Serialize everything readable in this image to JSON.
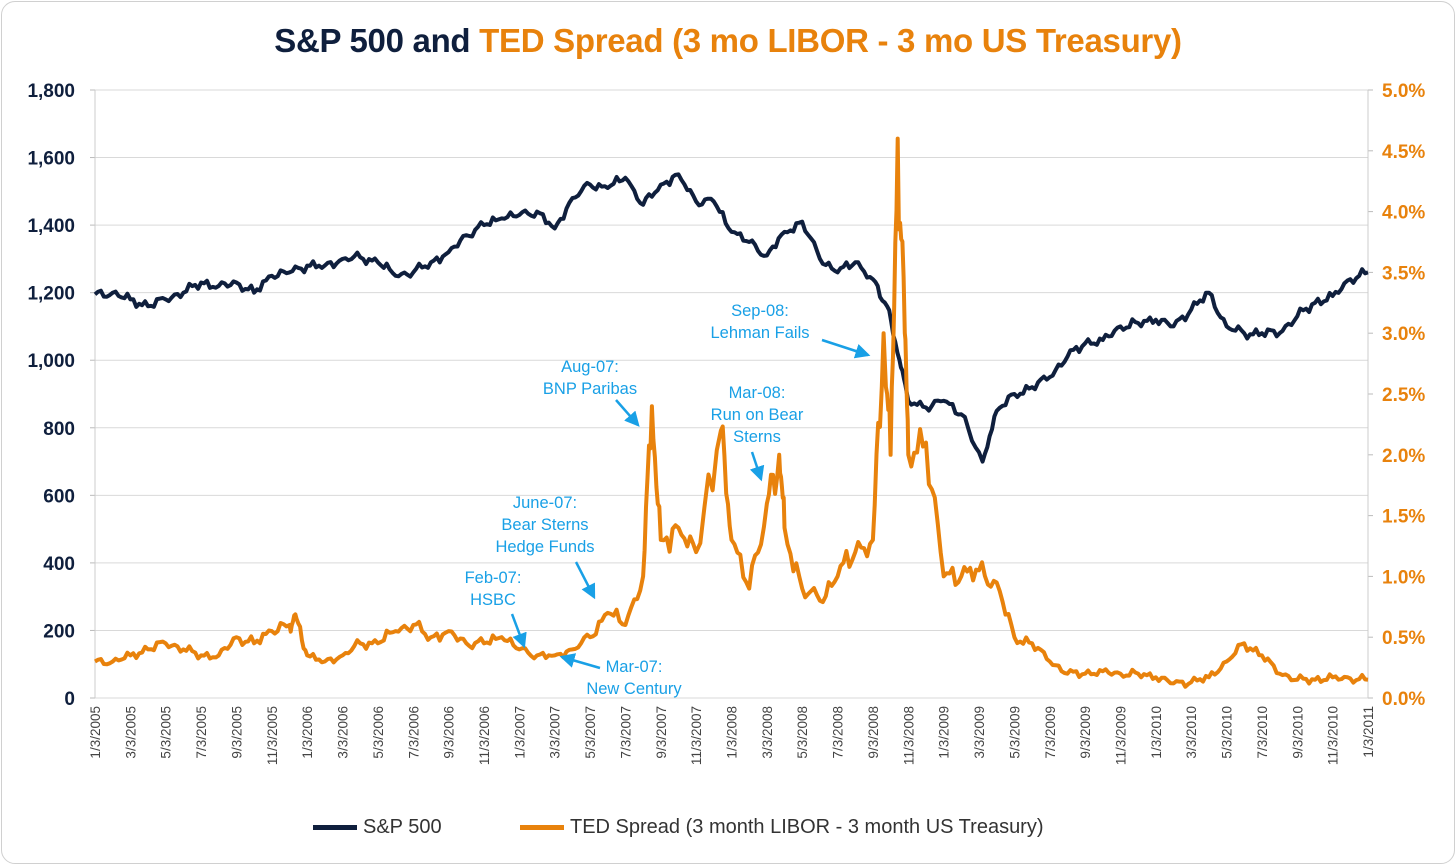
{
  "chart_data": {
    "type": "line",
    "title_part1": "S&P 500 and ",
    "title_part2": "TED Spread (3 mo LIBOR - 3 mo US Treasury)",
    "x_unit": "months since 1/3/2005",
    "xlim": [
      0,
      72
    ],
    "x_tick_labels": [
      "1/3/2005",
      "3/3/2005",
      "5/3/2005",
      "7/3/2005",
      "9/3/2005",
      "11/3/2005",
      "1/3/2006",
      "3/3/2006",
      "5/3/2006",
      "7/3/2006",
      "9/3/2006",
      "11/3/2006",
      "1/3/2007",
      "3/3/2007",
      "5/3/2007",
      "7/3/2007",
      "9/3/2007",
      "11/3/2007",
      "1/3/2008",
      "3/3/2008",
      "5/3/2008",
      "7/3/2008",
      "9/3/2008",
      "11/3/2008",
      "1/3/2009",
      "3/3/2009",
      "5/3/2009",
      "7/3/2009",
      "9/3/2009",
      "11/3/2009",
      "1/3/2010",
      "3/3/2010",
      "5/3/2010",
      "7/3/2010",
      "9/3/2010",
      "11/3/2010",
      "1/3/2011"
    ],
    "y_left": {
      "ylim": [
        0,
        1800
      ],
      "tick_labels": [
        "0",
        "200",
        "400",
        "600",
        "800",
        "1,000",
        "1,200",
        "1,400",
        "1,600",
        "1,800"
      ]
    },
    "y_right": {
      "ylim": [
        0,
        5.0
      ],
      "tick_labels": [
        "0.0%",
        "0.5%",
        "1.0%",
        "1.5%",
        "2.0%",
        "2.5%",
        "3.0%",
        "3.5%",
        "4.0%",
        "4.5%",
        "5.0%"
      ]
    },
    "grid": true,
    "legend_position": "bottom",
    "series": [
      {
        "name": "S&P 500",
        "axis": "left",
        "color": "#0f1f3d",
        "x": [
          0,
          1,
          2,
          3,
          4,
          5,
          6,
          7,
          8,
          9,
          10,
          11,
          12,
          13,
          14,
          15,
          16,
          17,
          18,
          19,
          20,
          21,
          22,
          23,
          24,
          25,
          26,
          27,
          28,
          29,
          30,
          31,
          32,
          33,
          34,
          35,
          36,
          37,
          38,
          39,
          40,
          41,
          42,
          43,
          44,
          44.8,
          45.5,
          46,
          47,
          48,
          49,
          50.2,
          51,
          52,
          53,
          54,
          55,
          56,
          57,
          58,
          59,
          60,
          61,
          62,
          63,
          64,
          65,
          66,
          67,
          68,
          69,
          70,
          71,
          72
        ],
        "values": [
          1195,
          1200,
          1180,
          1160,
          1180,
          1200,
          1230,
          1220,
          1230,
          1200,
          1250,
          1260,
          1280,
          1280,
          1300,
          1305,
          1290,
          1250,
          1260,
          1290,
          1320,
          1370,
          1400,
          1420,
          1430,
          1440,
          1390,
          1480,
          1520,
          1510,
          1540,
          1460,
          1520,
          1550,
          1470,
          1470,
          1380,
          1350,
          1310,
          1380,
          1410,
          1300,
          1260,
          1290,
          1240,
          1160,
          1000,
          880,
          860,
          880,
          840,
          700,
          850,
          900,
          920,
          950,
          1010,
          1050,
          1060,
          1100,
          1110,
          1120,
          1100,
          1150,
          1200,
          1100,
          1080,
          1080,
          1080,
          1130,
          1170,
          1190,
          1240,
          1260
        ]
      },
      {
        "name": "TED Spread (3 month LIBOR - 3 month US Treasury)",
        "axis": "right",
        "color": "#e8820c",
        "x": [
          0,
          1,
          2,
          3,
          4,
          5,
          6,
          7,
          8,
          9,
          10,
          11,
          11.4,
          12,
          13,
          14,
          15,
          16,
          17,
          18,
          19,
          20,
          21,
          22,
          23,
          24,
          25,
          26,
          27,
          28,
          29,
          30,
          31,
          31.5,
          32,
          33,
          34,
          35.4,
          36,
          37,
          38,
          38.7,
          39,
          40,
          41,
          42,
          43,
          44,
          44.6,
          45,
          45.4,
          45.8,
          46,
          47,
          48,
          49,
          50,
          51,
          52,
          53,
          54,
          55,
          56,
          57,
          58,
          59,
          60,
          61,
          62,
          63,
          64,
          65,
          66,
          67,
          68,
          69,
          70,
          71,
          72
        ],
        "values": [
          0.3,
          0.3,
          0.35,
          0.4,
          0.45,
          0.4,
          0.35,
          0.35,
          0.5,
          0.45,
          0.55,
          0.6,
          0.65,
          0.35,
          0.3,
          0.35,
          0.45,
          0.45,
          0.55,
          0.6,
          0.5,
          0.55,
          0.45,
          0.45,
          0.5,
          0.4,
          0.35,
          0.35,
          0.4,
          0.5,
          0.7,
          0.6,
          1.0,
          2.4,
          1.3,
          1.4,
          1.2,
          2.2,
          1.3,
          0.9,
          1.6,
          2.0,
          1.4,
          0.9,
          0.8,
          1.0,
          1.2,
          1.3,
          3.0,
          2.0,
          4.6,
          3.0,
          2.0,
          2.1,
          1.0,
          1.0,
          1.05,
          0.95,
          0.5,
          0.45,
          0.3,
          0.2,
          0.2,
          0.22,
          0.2,
          0.2,
          0.17,
          0.12,
          0.13,
          0.17,
          0.3,
          0.45,
          0.35,
          0.2,
          0.15,
          0.15,
          0.17,
          0.16,
          0.15
        ]
      }
    ],
    "annotations": [
      {
        "lines": [
          "Feb-07:",
          "HSBC"
        ]
      },
      {
        "lines": [
          "Mar-07:",
          "New Century"
        ]
      },
      {
        "lines": [
          "June-07:",
          "Bear Sterns",
          "Hedge Funds"
        ]
      },
      {
        "lines": [
          "Aug-07:",
          "BNP Paribas"
        ]
      },
      {
        "lines": [
          "Mar-08:",
          "Run on Bear",
          "Sterns"
        ]
      },
      {
        "lines": [
          "Sep-08:",
          "Lehman Fails"
        ]
      }
    ],
    "colors": {
      "navy": "#0f1f3d",
      "orange": "#e8820c",
      "annotation": "#19a0e6",
      "grid": "#d9d9d9"
    }
  }
}
